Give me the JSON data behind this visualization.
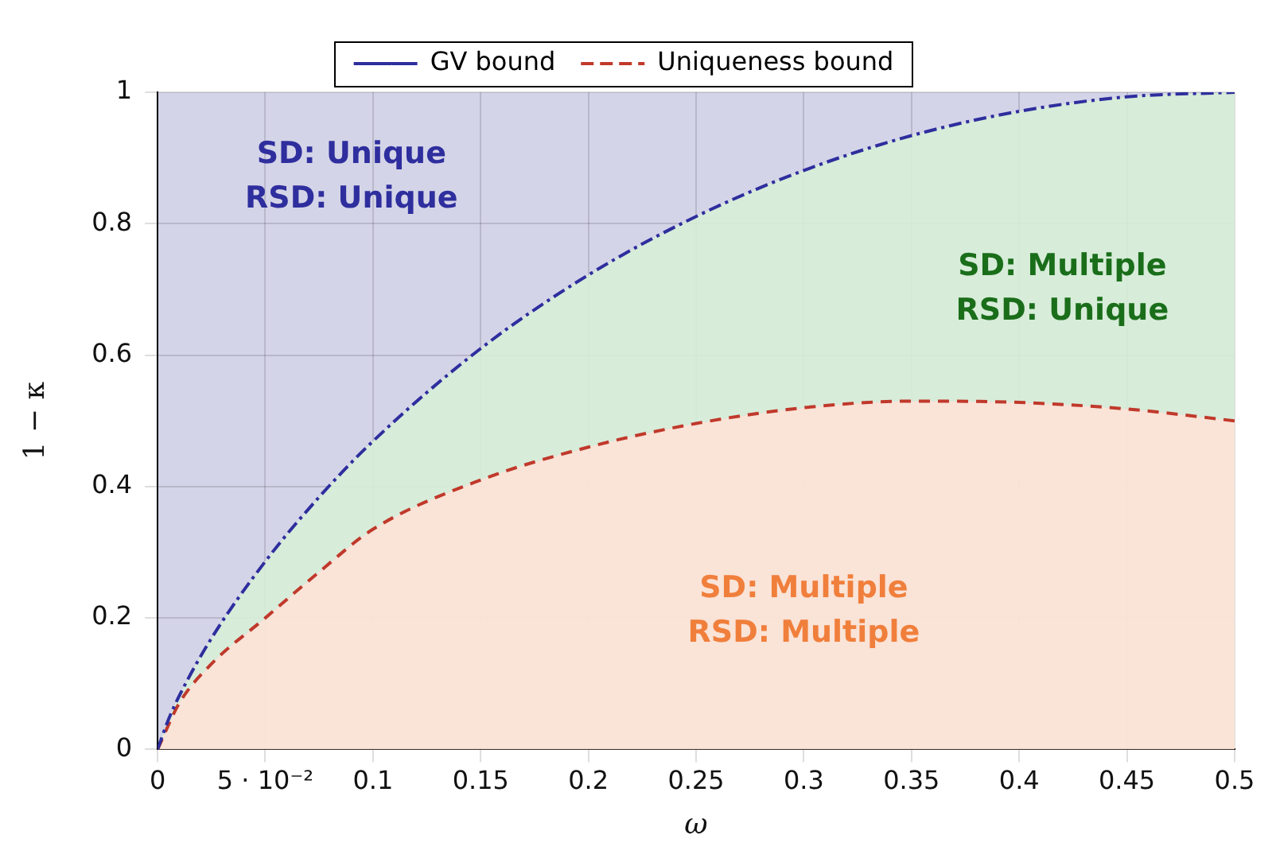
{
  "chart_data": {
    "type": "line",
    "xlabel": "ω",
    "ylabel": "1 − κ",
    "xlim": [
      0,
      0.5
    ],
    "xticks": [
      0,
      {
        "value": 0.05,
        "label": "5 · 10⁻²"
      },
      0.1,
      0.15,
      0.2,
      0.25,
      0.3,
      0.35,
      0.4,
      0.45,
      0.5
    ],
    "ylim": [
      0,
      1
    ],
    "yticks": [
      0,
      0.2,
      0.4,
      0.6,
      0.8,
      1
    ],
    "grid": true,
    "legend": "top",
    "marker": "none",
    "series": [
      {
        "name": "GV bound",
        "color": "#2e2e9e",
        "line_style": "dashdot",
        "x": [
          0,
          0.005,
          0.01,
          0.025,
          0.05,
          0.075,
          0.1,
          0.15,
          0.2,
          0.25,
          0.3,
          0.35,
          0.4,
          0.45,
          0.5
        ],
        "values": [
          0,
          0.045,
          0.081,
          0.169,
          0.286,
          0.384,
          0.469,
          0.61,
          0.722,
          0.811,
          0.881,
          0.934,
          0.971,
          0.993,
          1
        ]
      },
      {
        "name": "Uniqueness bound",
        "color": "#c0392b",
        "line_style": "dashed",
        "x": [
          0,
          0.01,
          0.025,
          0.05,
          0.075,
          0.1,
          0.15,
          0.2,
          0.25,
          0.3,
          0.35,
          0.4,
          0.45,
          0.5
        ],
        "values": [
          0,
          0.07,
          0.13,
          0.2,
          0.27,
          0.335,
          0.41,
          0.46,
          0.496,
          0.52,
          0.53,
          0.528,
          0.518,
          0.5
        ]
      }
    ],
    "annotations": [
      "SD: Unique\nRSD: Unique",
      "SD: Multiple\nRSD: Unique",
      "SD: Multiple\nRSD: Multiple"
    ]
  }
}
